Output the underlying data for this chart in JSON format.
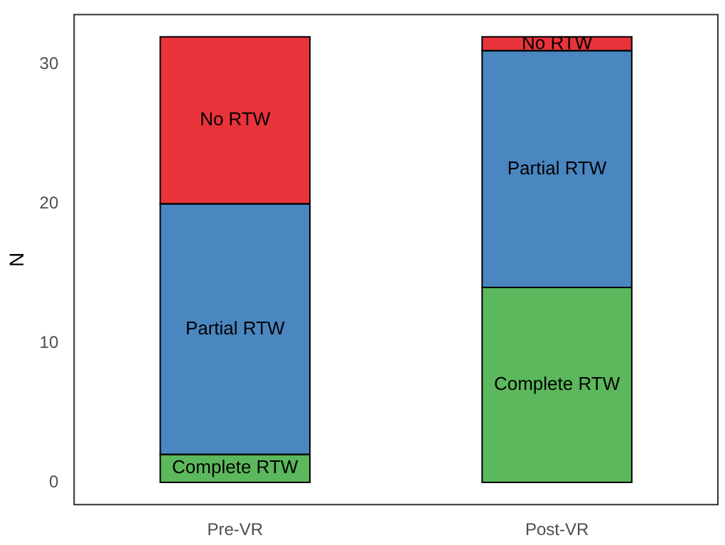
{
  "chart_data": {
    "type": "bar",
    "stacked": true,
    "ylabel": "N",
    "categories": [
      "Pre-VR",
      "Post-VR"
    ],
    "series": [
      {
        "name": "Complete RTW",
        "color": "#5cb85c",
        "values": [
          2,
          14
        ]
      },
      {
        "name": "Partial RTW",
        "color": "#4a86c0",
        "values": [
          18,
          17
        ]
      },
      {
        "name": "No RTW",
        "color": "#e8333a",
        "values": [
          12,
          1
        ]
      }
    ],
    "ylim": [
      -1.6,
      33.6
    ],
    "yticks": [
      0,
      10,
      20,
      30
    ],
    "grid": false,
    "legend": false
  }
}
